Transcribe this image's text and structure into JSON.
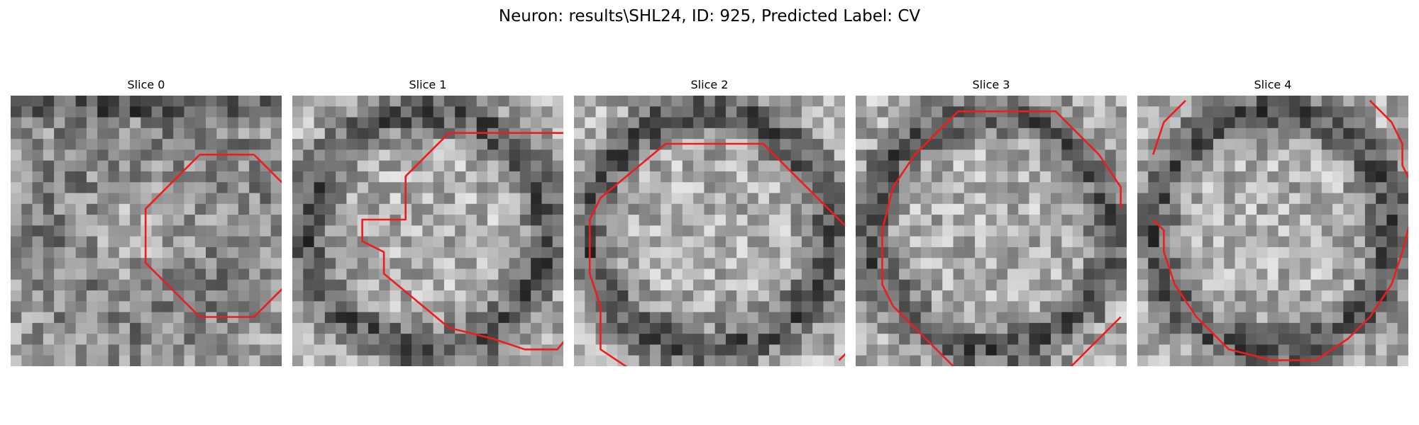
{
  "figure": {
    "title": "Neuron: results\\SHL24, ID: 925, Predicted Label: CV"
  },
  "colors": {
    "background": "#ffffff",
    "contour": "#ee1c1c",
    "image_colormap": "gray"
  },
  "slices": [
    {
      "label": "Slice 0",
      "image_seed": 11,
      "image_bias": "soft-disc",
      "contour": [
        [
          [
            21.95,
            4.95
          ],
          [
            26.95,
            9.95
          ],
          [
            26.95,
            14.95
          ],
          [
            21.95,
            19.95
          ],
          [
            16.95,
            19.95
          ],
          [
            11.95,
            14.95
          ],
          [
            11.95,
            9.95
          ],
          [
            16.95,
            4.95
          ],
          [
            21.95,
            4.95
          ]
        ]
      ]
    },
    {
      "label": "Slice 1",
      "image_seed": 23,
      "image_bias": "dark-ring",
      "contour": [
        [
          [
            24.95,
            2.95
          ],
          [
            28.95,
            7.95
          ],
          [
            28.95,
            16.95
          ],
          [
            23.95,
            22.95
          ],
          [
            20.95,
            22.95
          ],
          [
            17.95,
            21.95
          ],
          [
            13.95,
            20.95
          ],
          [
            7.95,
            15.95
          ],
          [
            7.95,
            13.95
          ],
          [
            5.95,
            12.95
          ],
          [
            5.95,
            10.95
          ],
          [
            9.95,
            10.95
          ],
          [
            9.95,
            6.95
          ],
          [
            13.95,
            2.95
          ],
          [
            18.95,
            2.95
          ],
          [
            24.95,
            2.95
          ]
        ]
      ]
    },
    {
      "label": "Slice 2",
      "image_seed": 37,
      "image_bias": "dark-ring",
      "contour": [
        [
          [
            7.95,
            3.95
          ],
          [
            16.95,
            3.95
          ],
          [
            24.95,
            11.95
          ],
          [
            24.95,
            14.95
          ],
          [
            25.95,
            16.95
          ],
          [
            25.95,
            21.95
          ],
          [
            23.95,
            23.95
          ]
        ],
        [
          [
            4.95,
            24.95
          ],
          [
            1.95,
            22.95
          ],
          [
            1.95,
            18.95
          ],
          [
            0.95,
            15.95
          ],
          [
            0.95,
            10.95
          ],
          [
            1.95,
            8.95
          ],
          [
            7.95,
            3.95
          ]
        ]
      ]
    },
    {
      "label": "Slice 3",
      "image_seed": 41,
      "image_bias": "dark-ring",
      "contour": [
        [
          [
            10.95,
            0.95
          ],
          [
            17.95,
            0.95
          ],
          [
            21.95,
            4.95
          ],
          [
            23.95,
            7.95
          ],
          [
            23.95,
            9.95
          ]
        ],
        [
          [
            8.95,
            24.95
          ],
          [
            4.95,
            20.95
          ],
          [
            2.95,
            18.95
          ],
          [
            1.95,
            16.95
          ],
          [
            1.95,
            11.95
          ],
          [
            2.95,
            7.95
          ],
          [
            4.95,
            4.95
          ],
          [
            8.95,
            0.95
          ],
          [
            10.95,
            0.95
          ]
        ],
        [
          [
            18.95,
            24.95
          ],
          [
            21.95,
            21.95
          ],
          [
            23.95,
            19.95
          ]
        ]
      ]
    },
    {
      "label": "Slice 4",
      "image_seed": 53,
      "image_bias": "dark-ring",
      "contour": [
        [
          [
            20.95,
            -0.05
          ],
          [
            22.95,
            1.95
          ],
          [
            23.95,
            3.95
          ],
          [
            23.95,
            5.95
          ],
          [
            24.95,
            7.95
          ],
          [
            24.95,
            9.95
          ],
          [
            23.95,
            13.95
          ],
          [
            22.95,
            16.95
          ],
          [
            20.95,
            19.95
          ],
          [
            18.95,
            21.95
          ],
          [
            15.95,
            23.95
          ],
          [
            11.95,
            23.95
          ],
          [
            7.95,
            22.95
          ],
          [
            4.95,
            19.95
          ],
          [
            2.95,
            16.95
          ],
          [
            1.95,
            13.95
          ],
          [
            1.95,
            11.95
          ],
          [
            0.95,
            10.95
          ]
        ],
        [
          [
            0.95,
            4.95
          ],
          [
            1.95,
            1.95
          ],
          [
            3.95,
            -0.05
          ]
        ]
      ]
    }
  ]
}
